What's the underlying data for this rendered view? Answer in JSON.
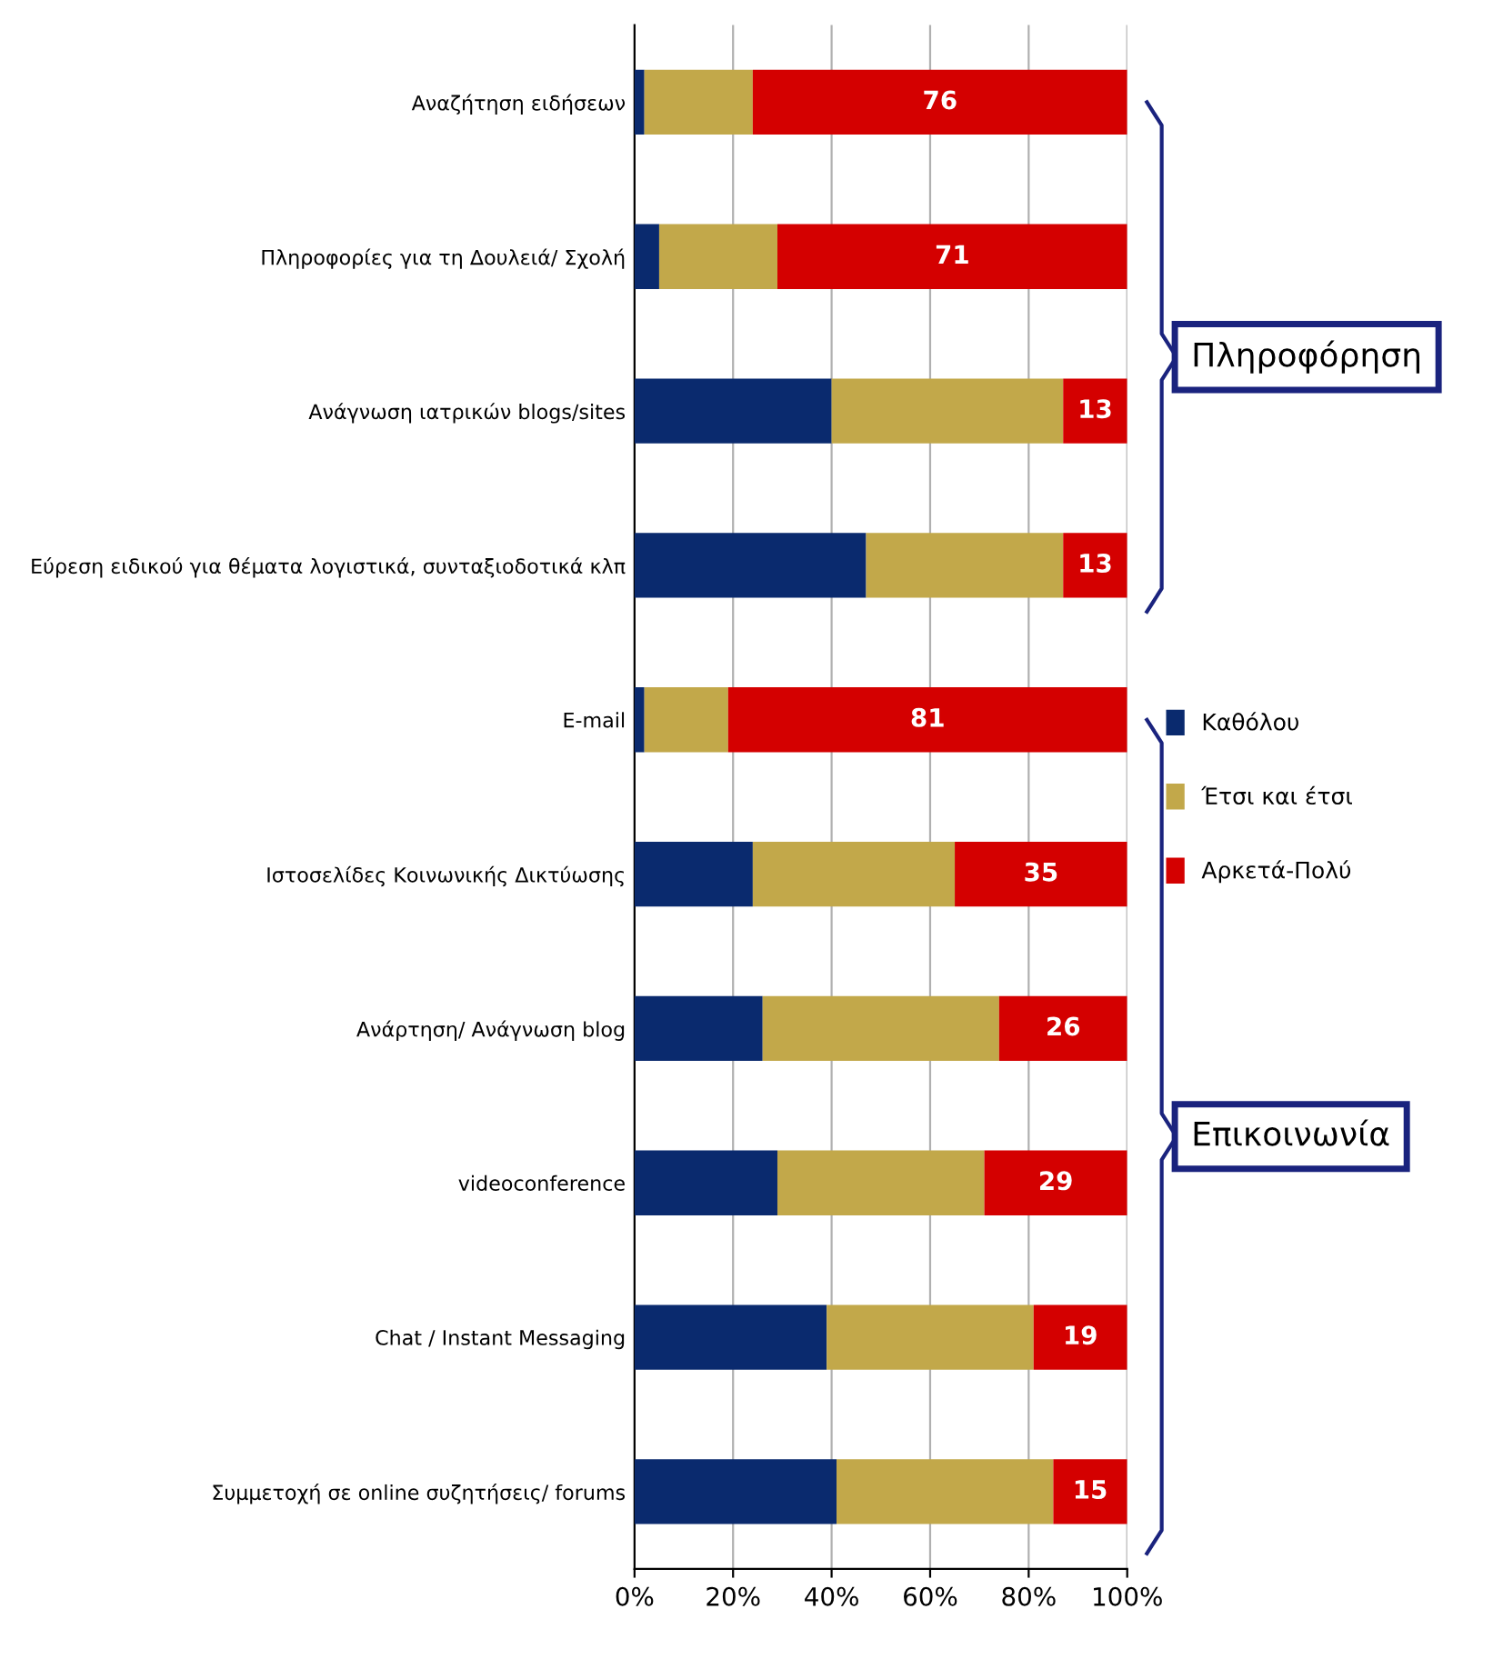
{
  "chart_data": {
    "type": "bar",
    "orientation": "horizontal",
    "stacked": true,
    "categories": [
      "Αναζήτηση ειδήσεων",
      "Πληροφορίες για τη Δουλειά/ Σχολή",
      "Ανάγνωση ιατρικών blogs/sites",
      "Εύρεση ειδικού για θέματα λογιστικά, συνταξιοδοτικά κλπ",
      "E-mail",
      "Ιστοσελίδες Κοινωνικής Δικτύωσης",
      "Ανάρτηση/ Ανάγνωση blog",
      "videoconference",
      "Chat / Instant Messaging",
      "Συμμετοχή σε online συζητήσεις/ forums"
    ],
    "series": [
      {
        "name": "Καθόλου",
        "color": "#0a2a6e",
        "values": [
          2,
          5,
          40,
          47,
          2,
          24,
          26,
          29,
          39,
          41
        ]
      },
      {
        "name": "Έτσι και έτσι",
        "color": "#c2a84a",
        "values": [
          22,
          24,
          47,
          40,
          17,
          41,
          48,
          42,
          42,
          44
        ]
      },
      {
        "name": "Αρκετά-Πολύ",
        "color": "#d40000",
        "values": [
          76,
          71,
          13,
          13,
          81,
          35,
          26,
          29,
          19,
          15
        ],
        "value_labels": [
          "76",
          "71",
          "13",
          "13",
          "81",
          "35",
          "26",
          "29",
          "19",
          "15"
        ]
      }
    ],
    "xlim": [
      0,
      100
    ],
    "xticks": [
      {
        "value": 0,
        "label": "0%"
      },
      {
        "value": 20,
        "label": "20%"
      },
      {
        "value": 40,
        "label": "40%"
      },
      {
        "value": 60,
        "label": "60%"
      },
      {
        "value": 80,
        "label": "80%"
      },
      {
        "value": 100,
        "label": "100%"
      }
    ],
    "grid": "x",
    "legend": "right",
    "annotations": [
      "Πληροφόρηση",
      "Επικοινωνία"
    ]
  }
}
